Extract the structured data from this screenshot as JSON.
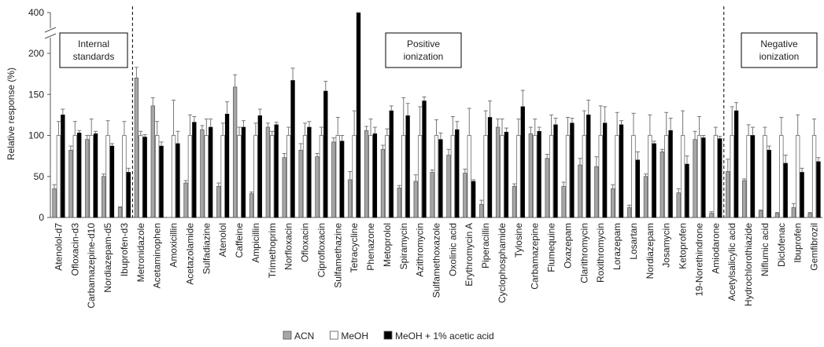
{
  "chart_data": {
    "type": "bar",
    "ylabel": "Relative response (%)",
    "categories": [
      "Atenolol-d7",
      "Ofloxacin-d3",
      "Carbamazepine-d10",
      "Nordiazepam-d5",
      "Ibuprofen-d3",
      "Metronidazole",
      "Acetaminophen",
      "Amoxicillin",
      "Acetazolamide",
      "Sulfadiazine",
      "Atenolol",
      "Caffeine",
      "Ampicillin",
      "Trimethoprim",
      "Norfloxacin",
      "Ofloxacin",
      "Ciprofloxacin",
      "Sulfamethazine",
      "Tetracycline",
      "Phenazone",
      "Metoprolol",
      "Spiramycin",
      "Azithromycin",
      "Sulfamethoxazole",
      "Oxolinic acid",
      "Erythromycin A",
      "Piperacillin",
      "Cyclophosphamide",
      "Tylosine",
      "Carbamazepine",
      "Flumequine",
      "Oxazepam",
      "Clarithromycin",
      "Roxithromycin",
      "Lorazepam",
      "Losartan",
      "Nordiazepam",
      "Josamycin",
      "Ketoprofen",
      "19-Norethindrone",
      "Amiodarone",
      "Acetylsalicylic acid",
      "Hydrochlorothiazide",
      "Niflumic acid",
      "Diclofenac",
      "Ibuprofen",
      "Gemfibrozil"
    ],
    "series": [
      {
        "name": "ACN",
        "color": "#a6a6a6",
        "values": [
          35,
          82,
          95,
          50,
          12,
          170,
          136,
          0,
          42,
          107,
          38,
          159,
          29,
          110,
          73,
          82,
          74,
          92,
          46,
          106,
          83,
          36,
          44,
          55,
          76,
          54,
          16,
          110,
          38,
          102,
          72,
          38,
          64,
          62,
          35,
          12,
          50,
          80,
          30,
          95,
          5,
          56,
          45,
          8,
          5,
          12,
          5
        ],
        "errors": [
          5,
          5,
          5,
          3,
          1,
          13,
          10,
          0,
          3,
          5,
          4,
          15,
          2,
          5,
          5,
          8,
          4,
          5,
          10,
          5,
          5,
          3,
          8,
          3,
          7,
          5,
          5,
          10,
          3,
          8,
          5,
          5,
          8,
          12,
          5,
          3,
          3,
          3,
          5,
          10,
          2,
          15,
          2,
          1,
          1,
          5,
          1
        ]
      },
      {
        "name": "MeOH",
        "color": "#ffffff",
        "values": [
          100,
          100,
          100,
          100,
          100,
          100,
          100,
          100,
          100,
          100,
          100,
          100,
          100,
          100,
          100,
          100,
          100,
          100,
          100,
          100,
          100,
          100,
          100,
          100,
          100,
          100,
          100,
          100,
          100,
          100,
          100,
          100,
          100,
          100,
          100,
          100,
          100,
          100,
          100,
          100,
          100,
          100,
          100,
          100,
          100,
          100,
          100
        ],
        "errors": [
          17,
          17,
          20,
          18,
          17,
          5,
          17,
          43,
          25,
          20,
          15,
          10,
          15,
          5,
          10,
          15,
          10,
          22,
          30,
          20,
          8,
          46,
          35,
          19,
          23,
          33,
          30,
          20,
          20,
          20,
          25,
          22,
          30,
          36,
          28,
          27,
          25,
          28,
          30,
          23,
          10,
          35,
          13,
          10,
          22,
          25,
          20
        ]
      },
      {
        "name": "MeOH + 1% acetic acid",
        "color": "#000000",
        "values": [
          125,
          103,
          102,
          87,
          55,
          98,
          87,
          90,
          116,
          110,
          126,
          110,
          124,
          113,
          167,
          110,
          154,
          93,
          400,
          102,
          130,
          124,
          142,
          95,
          107,
          44,
          122,
          104,
          135,
          105,
          113,
          115,
          125,
          115,
          113,
          70,
          90,
          106,
          65,
          97,
          96,
          130,
          100,
          82,
          66,
          55,
          68
        ],
        "errors": [
          7,
          3,
          3,
          3,
          5,
          3,
          5,
          15,
          7,
          10,
          15,
          8,
          8,
          3,
          15,
          7,
          12,
          7,
          0,
          8,
          6,
          15,
          5,
          8,
          10,
          2,
          20,
          5,
          20,
          5,
          8,
          6,
          18,
          20,
          5,
          10,
          3,
          15,
          10,
          3,
          3,
          10,
          10,
          5,
          10,
          5,
          5
        ]
      }
    ],
    "group_labels": [
      "Internal standards",
      "Positive ionization",
      "Negative ionization"
    ],
    "ylim": [
      0,
      400
    ],
    "yticks": [
      0,
      50,
      100,
      150,
      200,
      400
    ],
    "axis_break": true,
    "grid": false
  }
}
